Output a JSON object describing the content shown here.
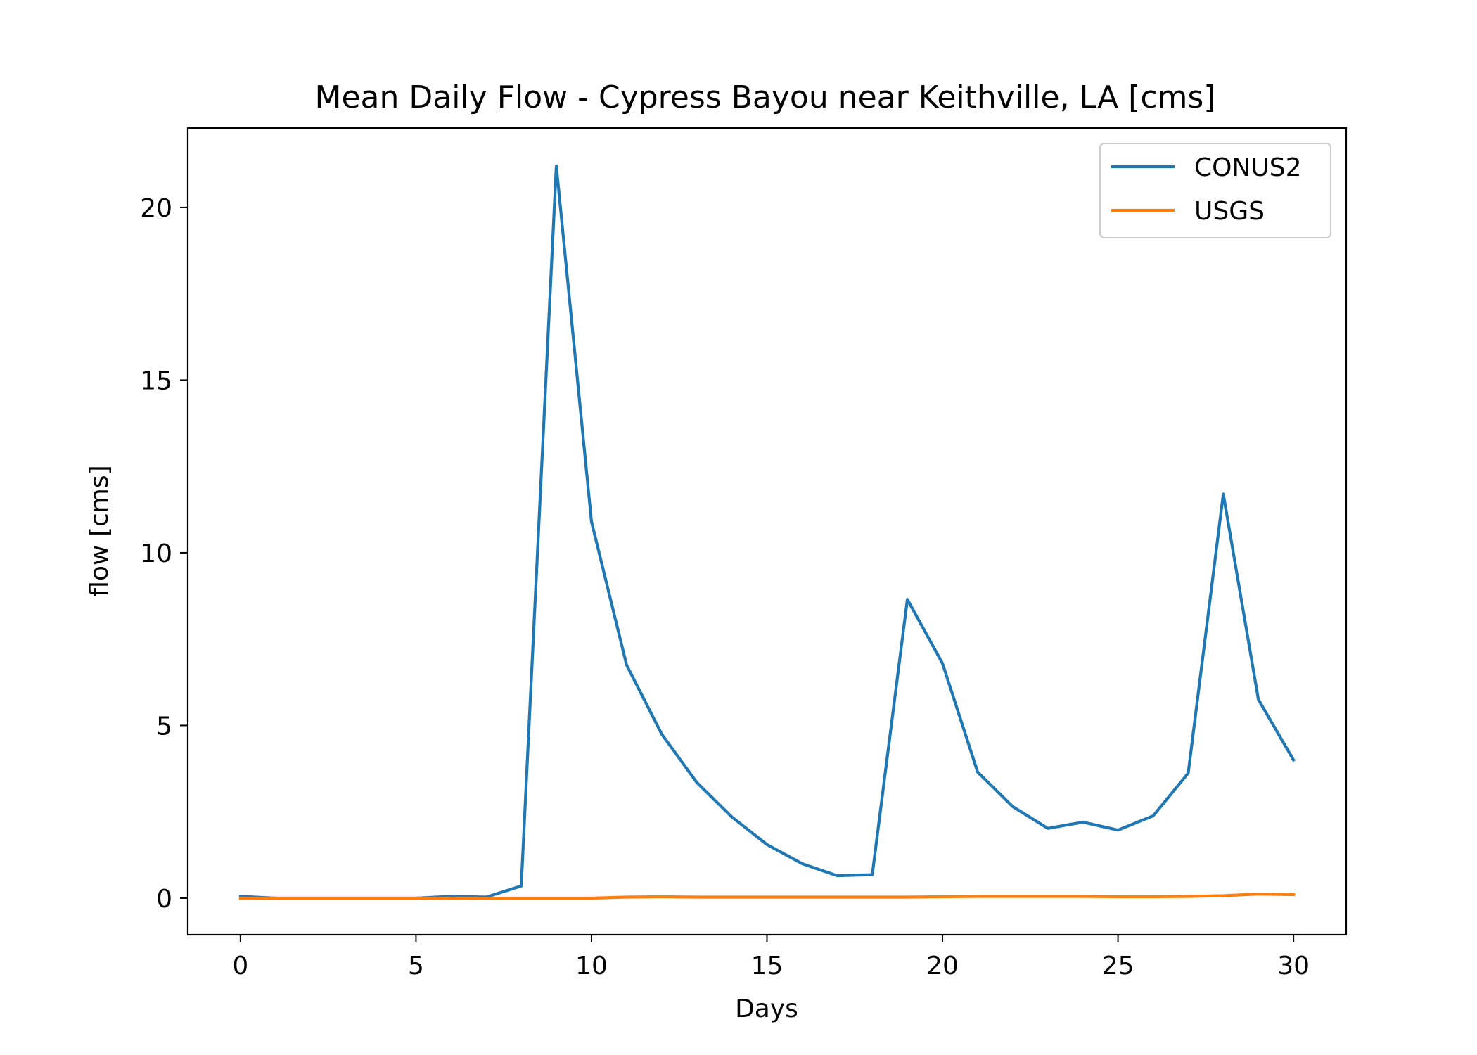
{
  "chart_data": {
    "type": "line",
    "title": "Mean Daily Flow - Cypress Bayou near Keithville, LA [cms]",
    "xlabel": "Days",
    "ylabel": "flow [cms]",
    "xlim": [
      -1.5,
      31.5
    ],
    "ylim": [
      -1.06,
      22.3
    ],
    "xticks": [
      0,
      5,
      10,
      15,
      20,
      25,
      30
    ],
    "yticks": [
      0,
      5,
      10,
      15,
      20
    ],
    "grid": false,
    "legend_position": "top-right",
    "x": [
      0,
      1,
      2,
      3,
      4,
      5,
      6,
      7,
      8,
      9,
      10,
      11,
      12,
      13,
      14,
      15,
      16,
      17,
      18,
      19,
      20,
      21,
      22,
      23,
      24,
      25,
      26,
      27,
      28,
      29,
      30
    ],
    "series": [
      {
        "name": "CONUS2",
        "color": "#1f77b4",
        "values": [
          0.05,
          0.0,
          0.0,
          0.0,
          0.0,
          0.0,
          0.05,
          0.03,
          0.35,
          21.2,
          10.9,
          6.75,
          4.75,
          3.35,
          2.35,
          1.55,
          1.0,
          0.65,
          0.68,
          8.65,
          6.8,
          3.65,
          2.65,
          2.02,
          2.2,
          1.97,
          2.38,
          3.62,
          11.7,
          5.75,
          4.0
        ]
      },
      {
        "name": "USGS",
        "color": "#ff7f0e",
        "values": [
          0.0,
          0.0,
          0.0,
          0.0,
          0.0,
          0.0,
          0.0,
          0.0,
          0.0,
          0.0,
          0.0,
          0.03,
          0.04,
          0.03,
          0.03,
          0.03,
          0.03,
          0.03,
          0.03,
          0.03,
          0.04,
          0.05,
          0.05,
          0.05,
          0.05,
          0.04,
          0.04,
          0.05,
          0.07,
          0.12,
          0.1
        ]
      }
    ]
  }
}
